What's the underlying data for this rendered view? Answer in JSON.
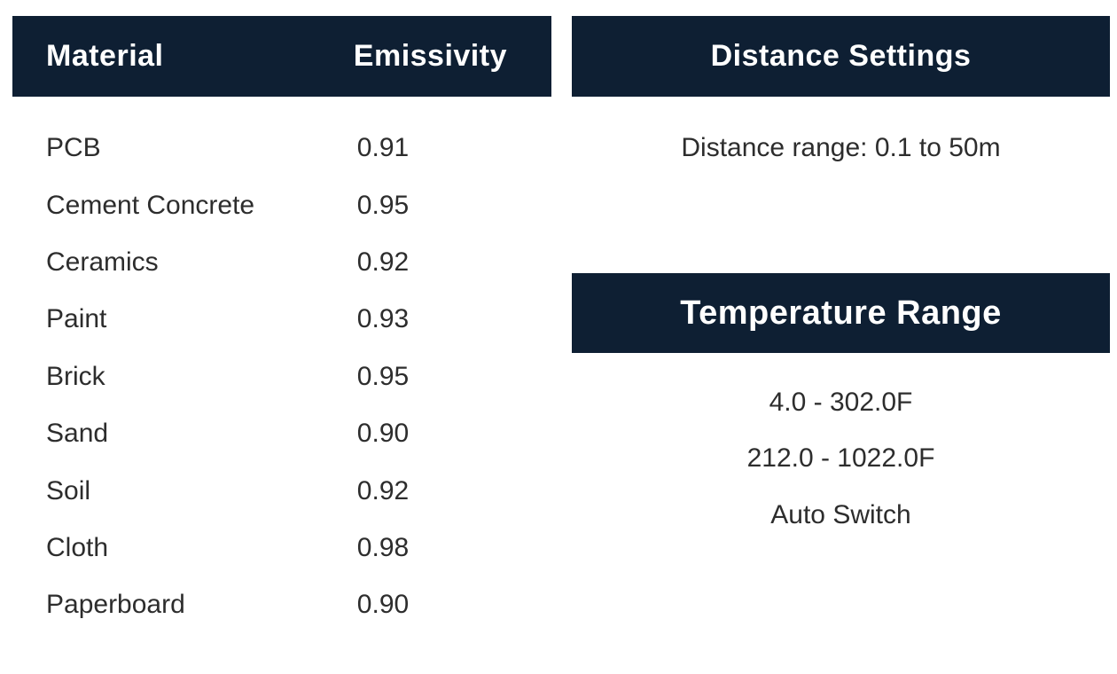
{
  "colors": {
    "header_bar": "#0e1f33",
    "header_text": "#ffffff",
    "body_text": "#2d2d2d",
    "background": "#ffffff"
  },
  "emissivity_table": {
    "headers": {
      "material": "Material",
      "emissivity": "Emissivity"
    },
    "rows": [
      {
        "material": "PCB",
        "emissivity": "0.91"
      },
      {
        "material": "Cement Concrete",
        "emissivity": "0.95"
      },
      {
        "material": "Ceramics",
        "emissivity": "0.92"
      },
      {
        "material": "Paint",
        "emissivity": "0.93"
      },
      {
        "material": "Brick",
        "emissivity": "0.95"
      },
      {
        "material": "Sand",
        "emissivity": "0.90"
      },
      {
        "material": "Soil",
        "emissivity": "0.92"
      },
      {
        "material": "Cloth",
        "emissivity": "0.98"
      },
      {
        "material": "Paperboard",
        "emissivity": "0.90"
      }
    ]
  },
  "distance_settings": {
    "title": "Distance Settings",
    "range_text": "Distance range: 0.1 to 50m"
  },
  "temperature_range": {
    "title": "Temperature Range",
    "lines": [
      "4.0 - 302.0F",
      "212.0 - 1022.0F",
      "Auto Switch"
    ]
  }
}
